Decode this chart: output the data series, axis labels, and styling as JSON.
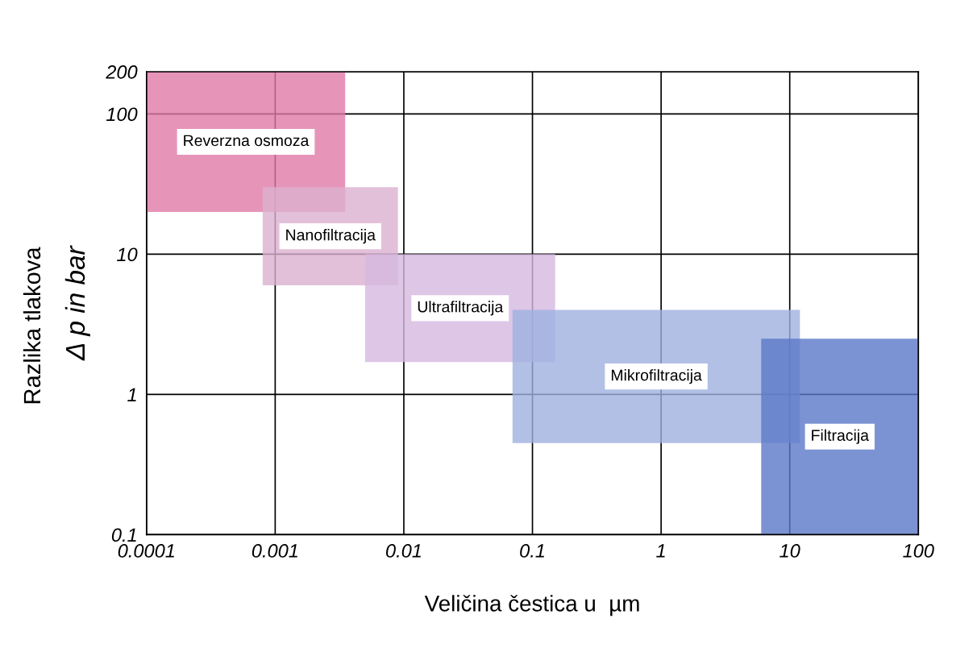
{
  "chart_data": {
    "type": "area",
    "xlabel": "Veličina čestica u  µm",
    "ylabel": "Δ p in bar",
    "annotations": [
      "Razlika tlakova"
    ],
    "log": "xy",
    "xlim": [
      0.0001,
      100
    ],
    "xticks": [
      0.0001,
      0.001,
      0.01,
      0.1,
      1,
      10,
      100
    ],
    "ylim": [
      0.1,
      200
    ],
    "yticks": [
      0.1,
      1,
      10,
      100,
      200
    ],
    "grid": true,
    "series": [
      {
        "name": "Reverzna osmoza",
        "color": "#e07aa8",
        "x": [
          0.0001,
          0.0001,
          0.0035,
          0.0035
        ],
        "values": [
          20,
          200,
          200,
          20
        ]
      },
      {
        "name": "Nanofiltracija",
        "color": "#dcb0d0",
        "x": [
          0.0008,
          0.0008,
          0.009,
          0.009
        ],
        "values": [
          6,
          30,
          30,
          6
        ]
      },
      {
        "name": "Ultrafiltracija",
        "color": "#d4b8e0",
        "x": [
          0.005,
          0.005,
          0.15,
          0.15
        ],
        "values": [
          1.7,
          10,
          10,
          1.7
        ]
      },
      {
        "name": "Mikrofiltracija",
        "color": "#9fb0e0",
        "x": [
          0.07,
          0.07,
          12,
          12
        ],
        "values": [
          0.45,
          4,
          4,
          0.45
        ]
      },
      {
        "name": "Filtracija",
        "color": "#5b78c8",
        "x": [
          6,
          6,
          100,
          100
        ],
        "values": [
          0.1,
          2.5,
          2.5,
          0.1
        ]
      }
    ]
  }
}
